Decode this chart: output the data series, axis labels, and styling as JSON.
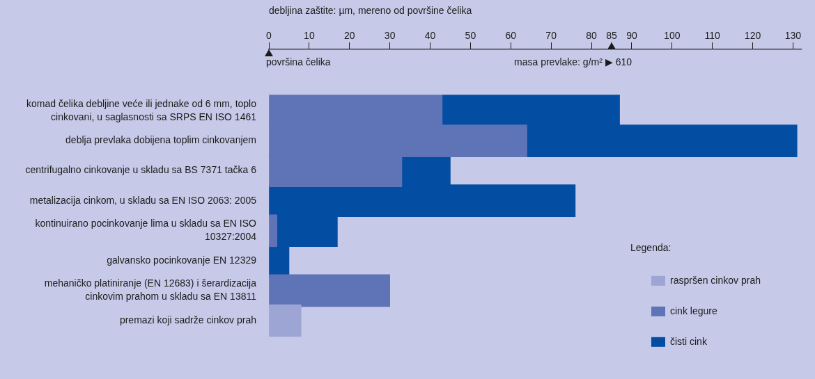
{
  "chart_data": {
    "type": "bar",
    "orientation": "horizontal",
    "stacked": true,
    "xlabel": "debljina zaštite: µm, mereno od površine čelika",
    "categories": [
      "komad čelika debljine veće ili jednake od 6 mm, toplo cinkovani, u saglasnosti sa SRPS EN ISO 1461",
      "deblja prevlaka dobijena toplim cinkovanjem",
      "centrifugalno cinkovanje u skladu sa BS 7371 tačka 6",
      "metalizacija cinkom, u skladu sa EN ISO 2063: 2005",
      "kontinuirano pocinkovanje lima u skladu sa EN ISO 10327:2004",
      "galvansko pocinkovanje EN 12329",
      "mehaničko platiniranje (EN 12683) i šerardizacija cinkovim prahom u skladu sa EN 13811",
      "premazi koji sadrže cinkov prah"
    ],
    "series": [
      {
        "name": "raspršen cinkov prah",
        "color": "#9ca5d4",
        "values": [
          null,
          null,
          null,
          null,
          null,
          null,
          null,
          8
        ]
      },
      {
        "name": "cink legure",
        "color": "#5f73b7",
        "values": [
          43,
          64,
          33,
          null,
          2,
          null,
          30,
          null
        ]
      },
      {
        "name": "čisti cink",
        "color": "#034ea2",
        "values": [
          44,
          67,
          12,
          76,
          15,
          5,
          null,
          null
        ]
      }
    ],
    "xlim": [
      0,
      132
    ],
    "xticks": [
      0,
      10,
      20,
      30,
      40,
      50,
      60,
      70,
      80,
      85,
      90,
      100,
      110,
      120,
      130
    ],
    "grid": false,
    "legend": "bottom right",
    "legend_title": "Legenda:",
    "annotations": [
      "površina čelika",
      "masa prevlake: g/m² ▶ 610"
    ]
  }
}
